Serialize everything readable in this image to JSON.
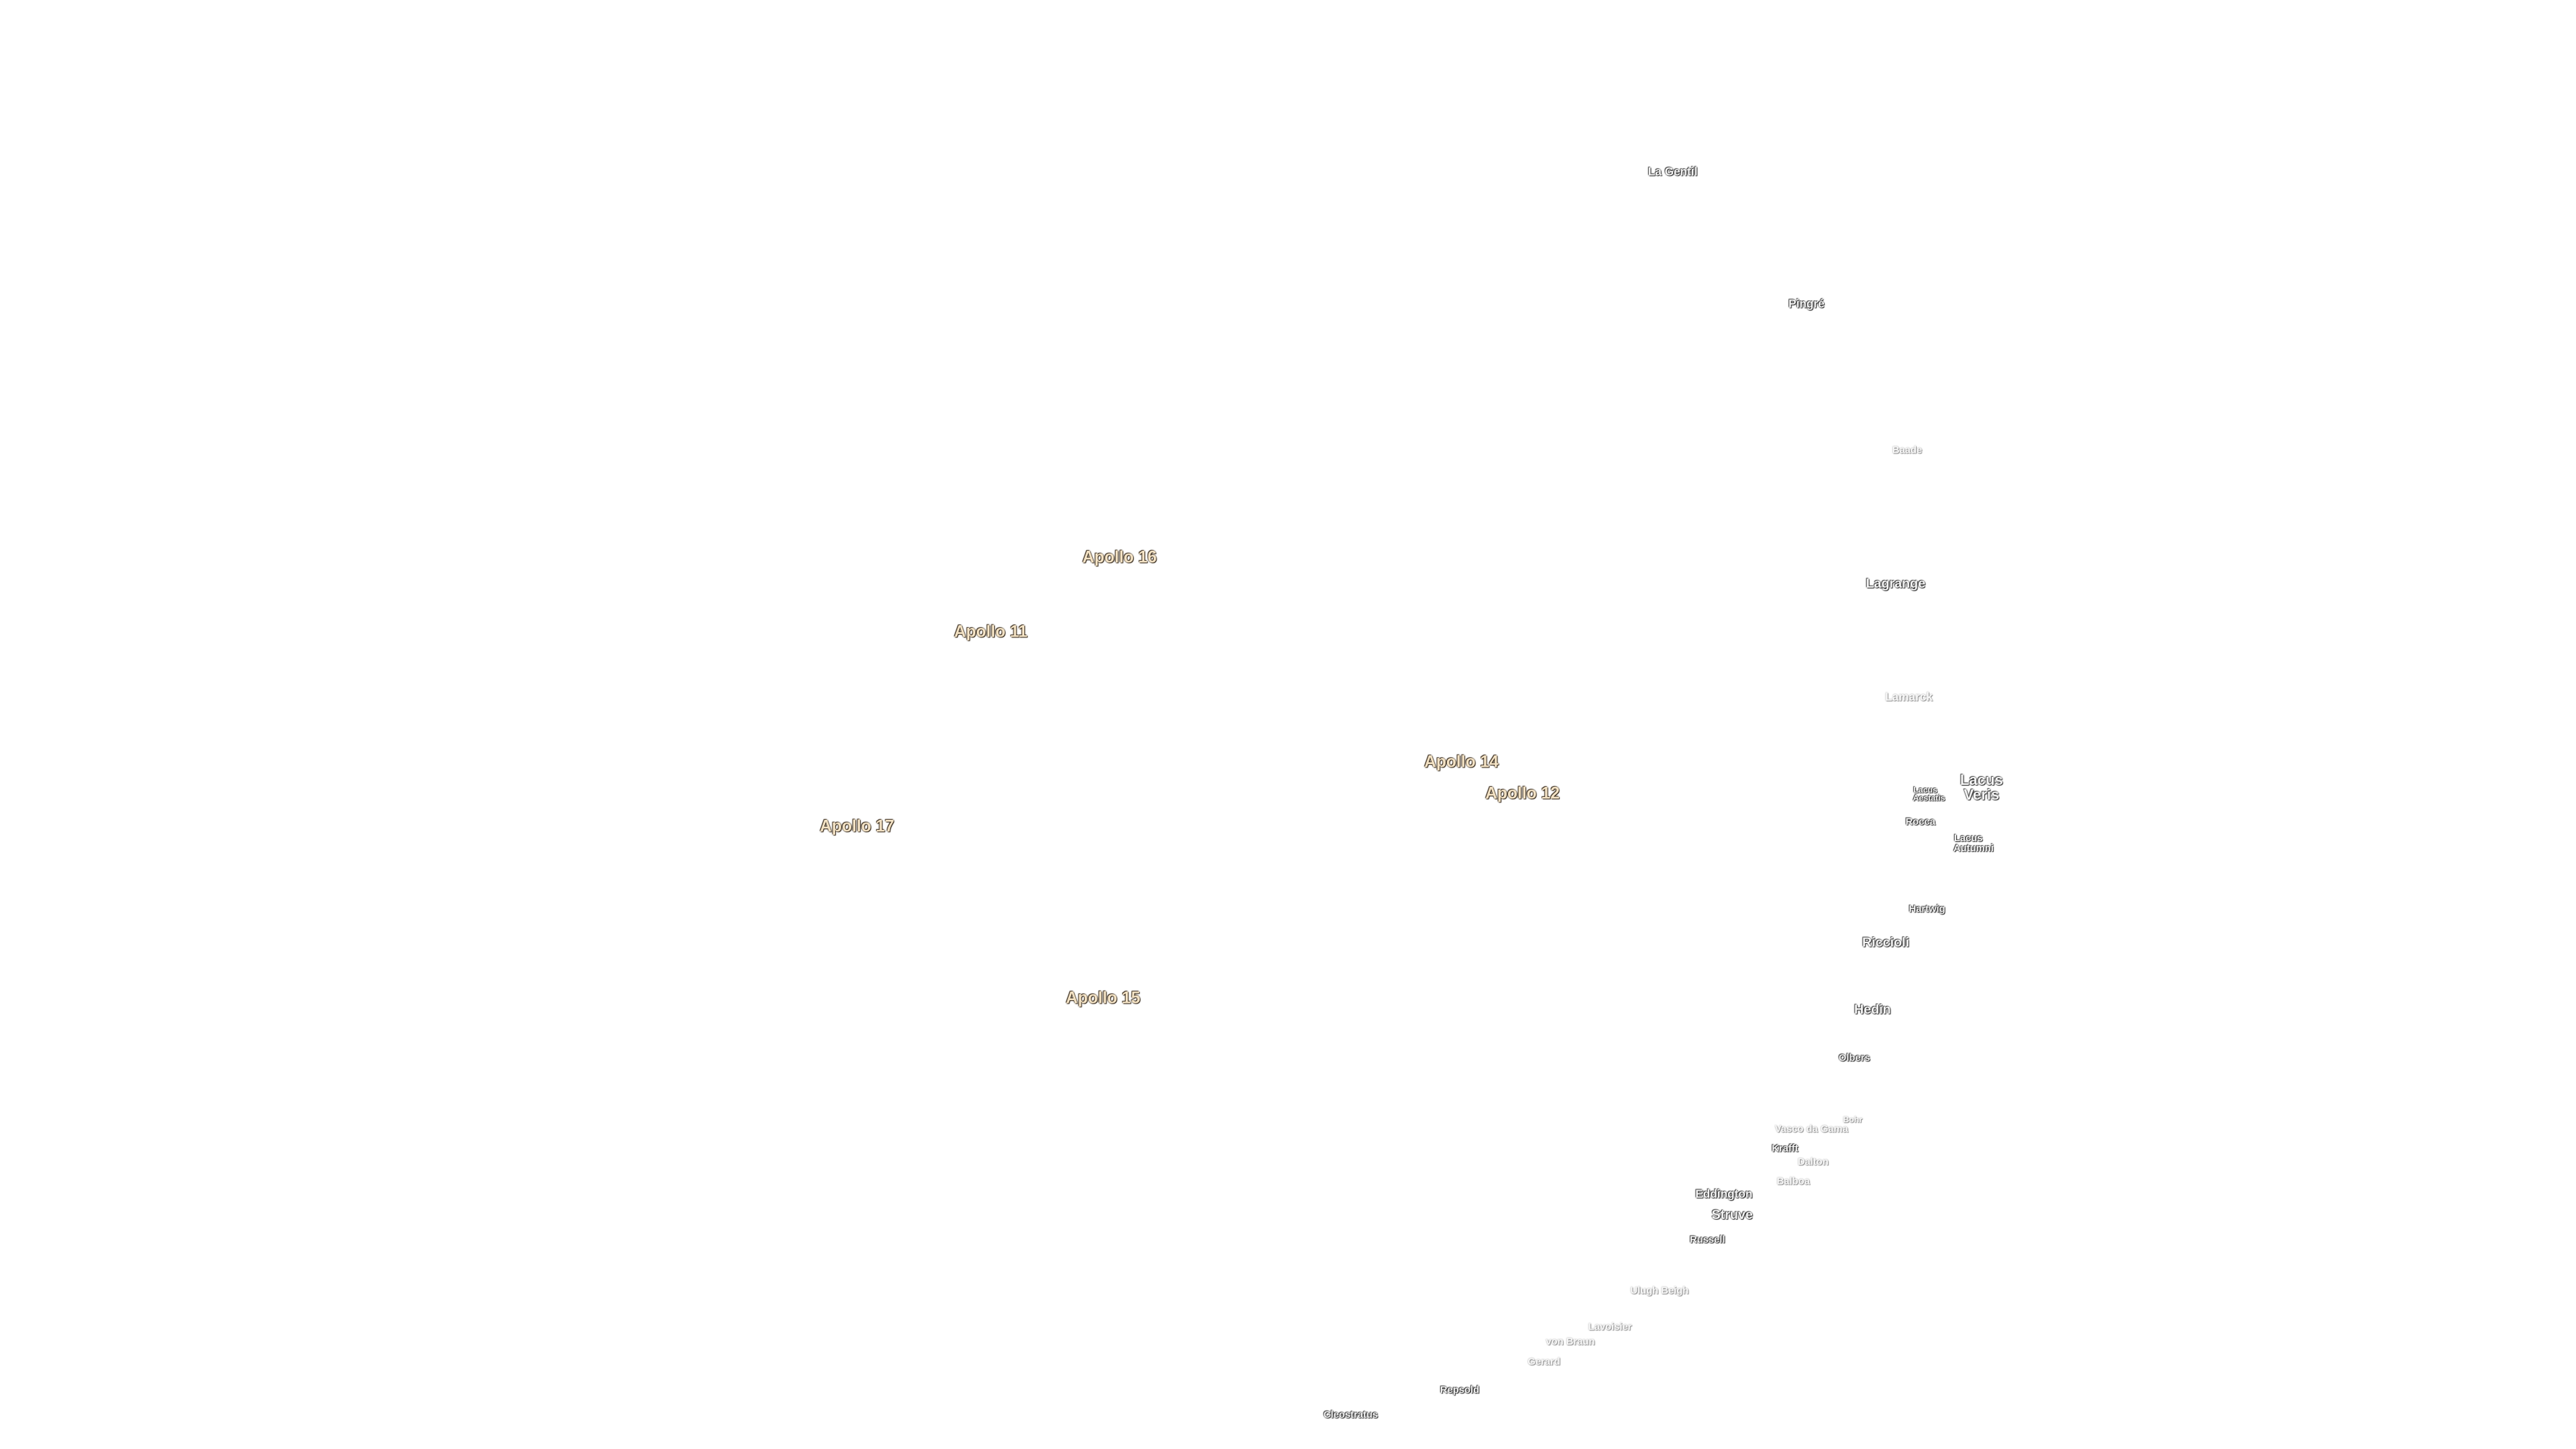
{
  "labels": [
    {
      "text": "La Gentil"
    },
    {
      "text": "Pingré"
    },
    {
      "text": "Baade"
    },
    {
      "text": "Lagrange"
    },
    {
      "text": "Lamarck"
    },
    {
      "text": "Apollo 16"
    },
    {
      "text": "Apollo 11"
    },
    {
      "text": "Apollo 14"
    },
    {
      "text": "Apollo 12"
    },
    {
      "text": "Apollo 17"
    },
    {
      "text": "Apollo 15"
    },
    {
      "text": "Lacus Veris"
    },
    {
      "text": "Lacus Aestatis"
    },
    {
      "text": "Rocca"
    },
    {
      "text": "Lacus Autumni"
    },
    {
      "text": "Hartwig"
    },
    {
      "text": "Riccioli"
    },
    {
      "text": "Hedin"
    },
    {
      "text": "Olbers"
    },
    {
      "text": "Bohr"
    },
    {
      "text": "Vasco da Gama"
    },
    {
      "text": "Krafft"
    },
    {
      "text": "Dalton"
    },
    {
      "text": "Balboa"
    },
    {
      "text": "Eddington"
    },
    {
      "text": "Struve"
    },
    {
      "text": "Russell"
    },
    {
      "text": "Ulugh Beigh"
    },
    {
      "text": "Lavoisier"
    },
    {
      "text": "von Braun"
    },
    {
      "text": "Gerard"
    },
    {
      "text": "Repsold"
    },
    {
      "text": "Cleostratus"
    }
  ]
}
